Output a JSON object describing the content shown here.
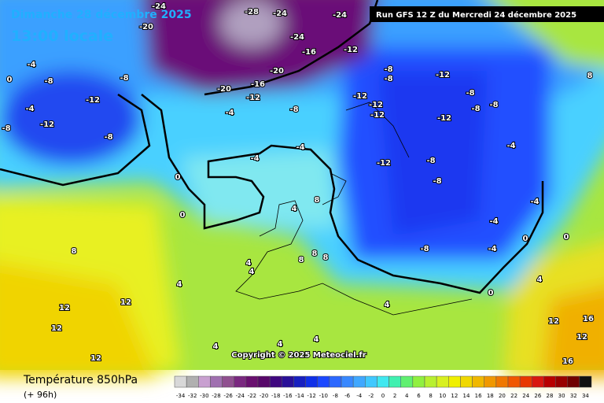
{
  "header": {
    "date": "Dimanche 28 décembre 2025",
    "time": "13:00 locale",
    "run": "Run GFS 12 Z du Mercredi 24 décembre 2025"
  },
  "copyright": "Copyright © 2025 Meteociel.fr",
  "footer": {
    "title": "Température 850hPa",
    "lead": "(+ 96h)"
  },
  "legend": {
    "values": [
      -34,
      -32,
      -30,
      -28,
      -26,
      -24,
      -22,
      -20,
      -18,
      -16,
      -14,
      -12,
      -10,
      -8,
      -6,
      -4,
      -2,
      0,
      2,
      4,
      6,
      8,
      10,
      12,
      14,
      16,
      18,
      20,
      22,
      24,
      26,
      28,
      30,
      32,
      34
    ],
    "colors": [
      "#d8d8d8",
      "#b0b0b0",
      "#c8a0d0",
      "#a070b0",
      "#905090",
      "#7a2880",
      "#6a1070",
      "#58086a",
      "#400880",
      "#2a1098",
      "#1820c0",
      "#1030e8",
      "#1c48ff",
      "#2c68ff",
      "#3888ff",
      "#40a8ff",
      "#40c8ff",
      "#40e8f0",
      "#40f0b0",
      "#60f070",
      "#90f040",
      "#b8f030",
      "#d8f020",
      "#f0f000",
      "#f0d800",
      "#f0b800",
      "#f09800",
      "#f07800",
      "#f05800",
      "#e83800",
      "#d81810",
      "#b80000",
      "#980000",
      "#700000",
      "#101010"
    ]
  },
  "contour_labels": [
    "-24",
    "-20",
    "-28",
    "-24",
    "-24",
    "-24",
    "-16",
    "-12",
    "-20",
    "-16",
    "-20",
    "-12",
    "-8",
    "-4",
    "-12",
    "-12",
    "-12",
    "-8",
    "-8",
    "-12",
    "-8",
    "-8",
    "-8",
    "-12",
    "-12",
    "-8",
    "-8",
    "-4",
    "-4",
    "-4",
    "0",
    "0",
    "-8",
    "-8",
    "-4",
    "-12",
    "-12",
    "-8",
    "-8",
    "0",
    "-4",
    "4",
    "8",
    "8",
    "8",
    "8",
    "4",
    "4",
    "8",
    "4",
    "12",
    "12",
    "12",
    "12",
    "4",
    "4",
    "4",
    "-4",
    "0",
    "-8",
    "-4",
    "0",
    "4",
    "12",
    "16",
    "16",
    "12",
    "0",
    "8",
    "-4",
    "4"
  ]
}
